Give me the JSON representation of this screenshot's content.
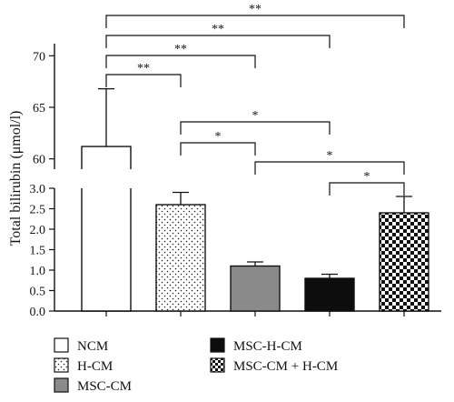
{
  "chart_data": {
    "type": "bar",
    "ylabel": "Total bilirubin (μmol/l)",
    "axis_break": true,
    "y_lower_range": [
      0.0,
      3.0
    ],
    "y_upper_range": [
      59,
      71
    ],
    "y_lower_ticks": [
      "0.0",
      "0.5",
      "1.0",
      "1.5",
      "2.0",
      "2.5",
      "3.0"
    ],
    "y_upper_ticks": [
      "60",
      "65",
      "70"
    ],
    "categories": [
      "NCM",
      "H-CM",
      "MSC-CM",
      "MSC-H-CM",
      "MSC-CM + H-CM"
    ],
    "values": [
      61.2,
      2.6,
      1.1,
      0.8,
      2.4
    ],
    "error_upper": [
      5.6,
      0.3,
      0.1,
      0.1,
      0.4
    ],
    "patterns": [
      "white",
      "dots",
      "gray",
      "black",
      "checker"
    ],
    "significance": [
      {
        "from": 0,
        "to": 4,
        "label": "**"
      },
      {
        "from": 0,
        "to": 3,
        "label": "**"
      },
      {
        "from": 0,
        "to": 2,
        "label": "**"
      },
      {
        "from": 0,
        "to": 1,
        "label": "**"
      },
      {
        "from": 1,
        "to": 3,
        "label": "*"
      },
      {
        "from": 1,
        "to": 2,
        "label": "*"
      },
      {
        "from": 2,
        "to": 4,
        "label": "*"
      },
      {
        "from": 3,
        "to": 4,
        "label": "*"
      }
    ],
    "legend": [
      {
        "label": "NCM",
        "pattern": "white"
      },
      {
        "label": "H-CM",
        "pattern": "dots"
      },
      {
        "label": "MSC-CM",
        "pattern": "gray"
      },
      {
        "label": "MSC-H-CM",
        "pattern": "black"
      },
      {
        "label": "MSC-CM + H-CM",
        "pattern": "checker"
      }
    ],
    "colors": {
      "gray": "#8a8a8a",
      "black": "#0d0d0d",
      "line": "#111111"
    }
  }
}
